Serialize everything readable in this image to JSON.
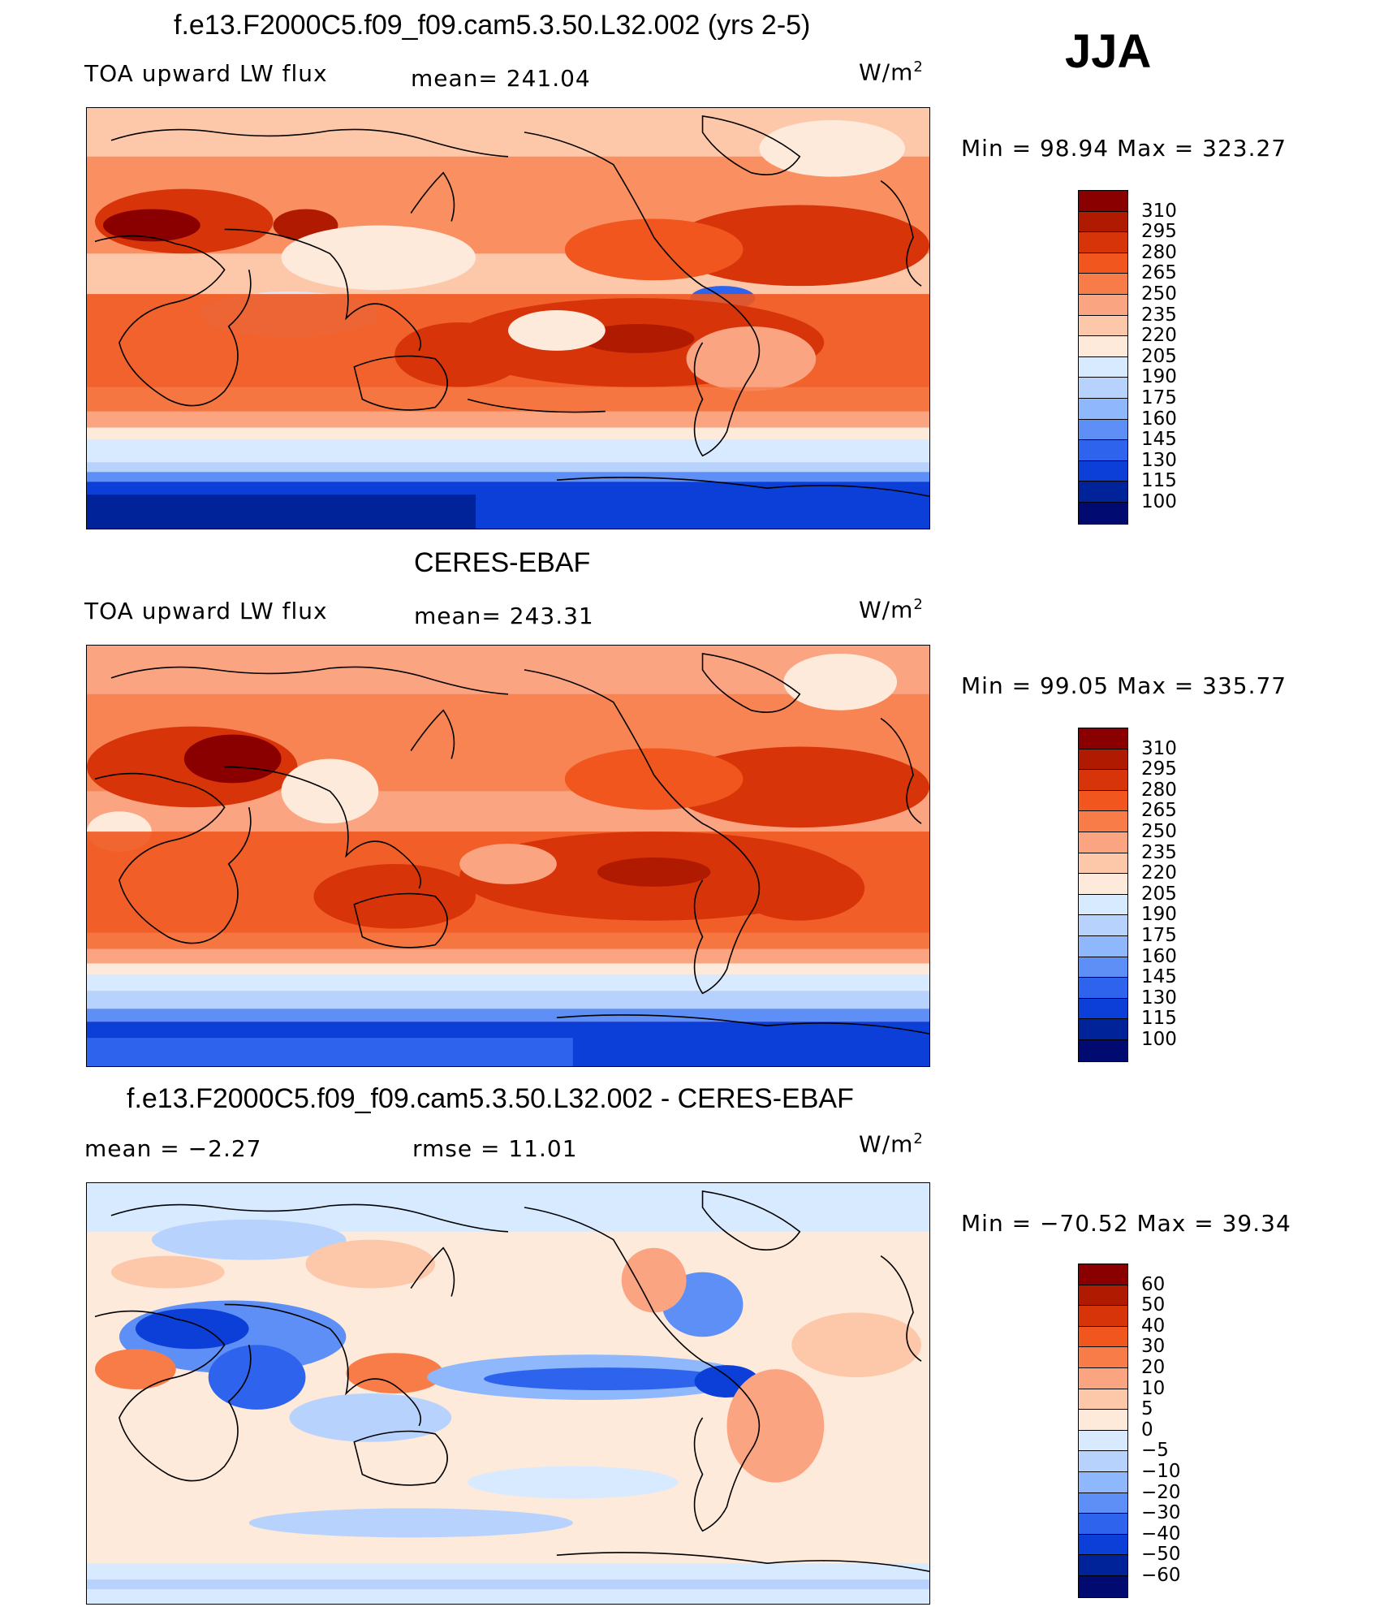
{
  "season": "JJA",
  "panels": [
    {
      "id": "model",
      "title": "f.e13.F2000C5.f09_f09.cam5.3.50.L32.002 (yrs 2-5)",
      "left_label": "TOA upward LW flux",
      "center_label": "mean=  241.04",
      "units_base": "W/m",
      "units_exp": "2",
      "minmax": "Min  =   98.94  Max  =  323.27",
      "levels": [
        "310",
        "295",
        "280",
        "265",
        "250",
        "235",
        "220",
        "205",
        "190",
        "175",
        "160",
        "145",
        "130",
        "115",
        "100"
      ],
      "colors": [
        "#8a0000",
        "#b01a00",
        "#d8340a",
        "#f0561e",
        "#f87c48",
        "#fba482",
        "#fdc8aa",
        "#fdeadb",
        "#d8eaff",
        "#b7d3fd",
        "#8fb7fb",
        "#5e8ff6",
        "#2e63ee",
        "#0c3fd8",
        "#00239a",
        "#000a70"
      ]
    },
    {
      "id": "obs",
      "title": "CERES-EBAF",
      "left_label": "TOA upward LW flux",
      "center_label": "mean=  243.31",
      "units_base": "W/m",
      "units_exp": "2",
      "minmax": "Min  =   99.05  Max  =  335.77",
      "levels": [
        "310",
        "295",
        "280",
        "265",
        "250",
        "235",
        "220",
        "205",
        "190",
        "175",
        "160",
        "145",
        "130",
        "115",
        "100"
      ],
      "colors": [
        "#8a0000",
        "#b01a00",
        "#d8340a",
        "#f0561e",
        "#f87c48",
        "#fba482",
        "#fdc8aa",
        "#fdeadb",
        "#d8eaff",
        "#b7d3fd",
        "#8fb7fb",
        "#5e8ff6",
        "#2e63ee",
        "#0c3fd8",
        "#00239a",
        "#000a70"
      ]
    },
    {
      "id": "diff",
      "title": "f.e13.F2000C5.f09_f09.cam5.3.50.L32.002 - CERES-EBAF",
      "left_label": "mean  =    −2.27",
      "center_label": "rmse  =    11.01",
      "units_base": "W/m",
      "units_exp": "2",
      "minmax": "Min  = −70.52  Max  =    39.34",
      "levels": [
        "60",
        "50",
        "40",
        "30",
        "20",
        "10",
        "5",
        "0",
        "−5",
        "−10",
        "−20",
        "−30",
        "−40",
        "−50",
        "−60"
      ],
      "colors": [
        "#8a0000",
        "#b01a00",
        "#d8340a",
        "#f0561e",
        "#f87c48",
        "#fba482",
        "#fdc8aa",
        "#fdeadb",
        "#d8eaff",
        "#b7d3fd",
        "#8fb7fb",
        "#5e8ff6",
        "#2e63ee",
        "#0c3fd8",
        "#00239a",
        "#000a70"
      ]
    }
  ]
}
